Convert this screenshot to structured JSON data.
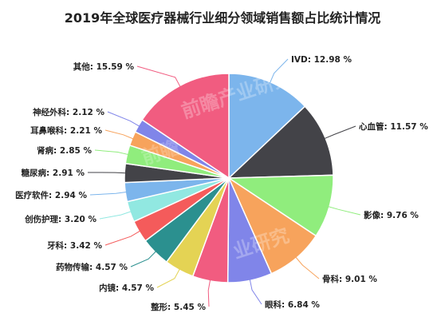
{
  "chart_data": {
    "type": "pie",
    "title": "2019年全球医疗器械行业细分领域销售额占比统计情况",
    "unit": "%",
    "slices": [
      {
        "label": "IVD",
        "value": 12.98,
        "display": "IVD: 12.98 %",
        "color": "#7cb5ec"
      },
      {
        "label": "心血管",
        "value": 11.57,
        "display": "心血管: 11.57 %",
        "color": "#434348"
      },
      {
        "label": "影像",
        "value": 9.76,
        "display": "影像: 9.76 %",
        "color": "#90ed7d"
      },
      {
        "label": "骨科",
        "value": 9.01,
        "display": "骨科: 9.01 %",
        "color": "#f7a35c"
      },
      {
        "label": "眼科",
        "value": 6.84,
        "display": "眼科: 6.84 %",
        "color": "#8085e9"
      },
      {
        "label": "整形",
        "value": 5.45,
        "display": "整形: 5.45 %",
        "color": "#f15c80"
      },
      {
        "label": "内镜",
        "value": 4.57,
        "display": "内镜: 4.57 %",
        "color": "#e4d354"
      },
      {
        "label": "药物传输",
        "value": 4.57,
        "display": "药物传输: 4.57 %",
        "color": "#2b908f"
      },
      {
        "label": "牙科",
        "value": 3.42,
        "display": "牙科: 3.42 %",
        "color": "#f45b5b"
      },
      {
        "label": "创伤护理",
        "value": 3.2,
        "display": "创伤护理: 3.20 %",
        "color": "#91e8e1"
      },
      {
        "label": "医疗软件",
        "value": 2.94,
        "display": "医疗软件: 2.94 %",
        "color": "#7cb5ec"
      },
      {
        "label": "糖尿病",
        "value": 2.91,
        "display": "糖尿病: 2.91 %",
        "color": "#434348"
      },
      {
        "label": "肾病",
        "value": 2.85,
        "display": "肾病: 2.85 %",
        "color": "#90ed7d"
      },
      {
        "label": "耳鼻喉科",
        "value": 2.21,
        "display": "耳鼻喉科: 2.21 %",
        "color": "#f7a35c"
      },
      {
        "label": "神经外科",
        "value": 2.12,
        "display": "神经外科: 2.12 %",
        "color": "#8085e9"
      },
      {
        "label": "其他",
        "value": 15.59,
        "display": "其他: 15.59 %",
        "color": "#f15c80"
      }
    ]
  },
  "watermark": {
    "text": "前瞻产业研究院",
    "short": "业研究",
    "brand": "前瞻"
  }
}
